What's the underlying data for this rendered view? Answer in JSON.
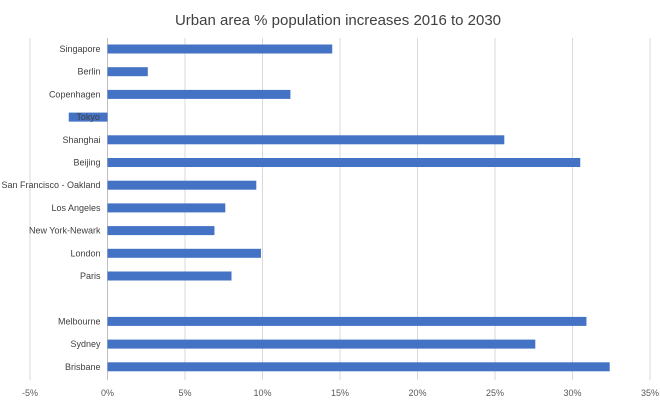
{
  "chart_data": {
    "type": "bar",
    "orientation": "horizontal",
    "title": "Urban area % population increases 2016 to 2030",
    "xlabel": "",
    "ylabel": "",
    "categories": [
      "Singapore",
      "Berlin",
      "Copenhagen",
      "Tokyo",
      "Shanghai",
      "Beijing",
      "San Francisco - Oakland",
      "Los Angeles",
      "New York-Newark",
      "London",
      "Paris",
      "",
      "Melbourne",
      "Sydney",
      "Brisbane"
    ],
    "values": [
      14.5,
      2.6,
      11.8,
      -2.5,
      25.6,
      30.5,
      9.6,
      7.6,
      6.9,
      9.9,
      8.0,
      null,
      30.9,
      27.6,
      32.4
    ],
    "xlim": [
      -5,
      35
    ],
    "xticks": [
      -5,
      0,
      5,
      10,
      15,
      20,
      25,
      30,
      35
    ],
    "xtick_labels": [
      "-5%",
      "0%",
      "5%",
      "10%",
      "15%",
      "20%",
      "25%",
      "30%",
      "35%"
    ],
    "grid": true,
    "legend": "none",
    "colors": {
      "bar": "#4472c4",
      "grid": "#d9d9d9",
      "text": "#404040"
    }
  }
}
